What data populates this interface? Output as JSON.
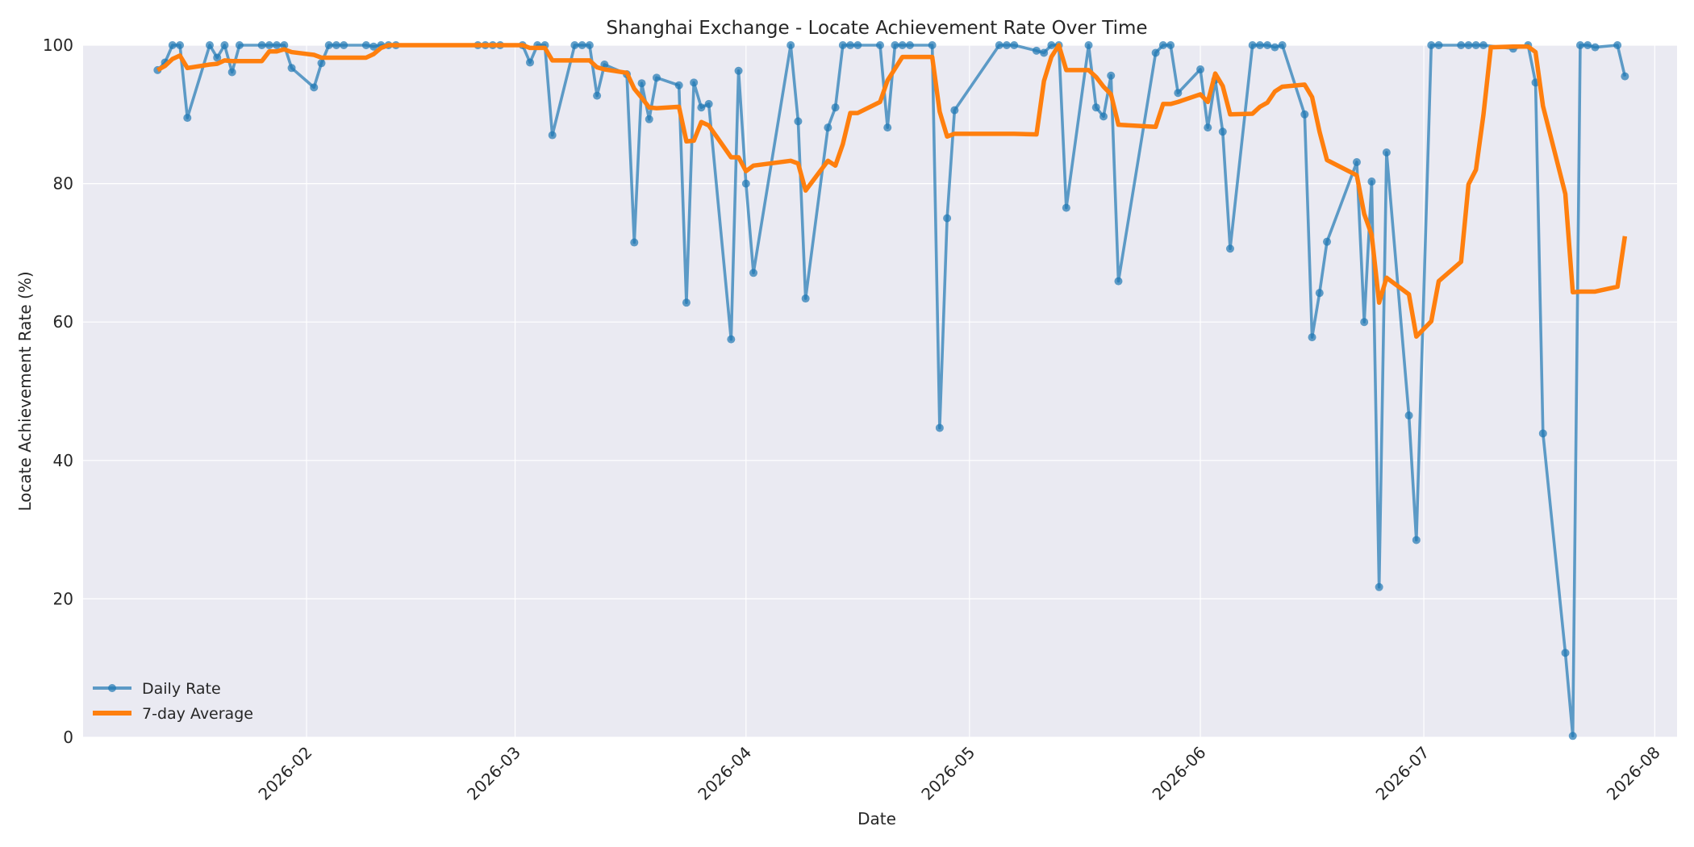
{
  "chart_data": {
    "type": "line",
    "title": "Shanghai Exchange - Locate Achievement Rate Over Time",
    "xlabel": "Date",
    "ylabel": "Locate Achievement Rate (%)",
    "xlim": [
      "2026-01-02",
      "2026-08-04"
    ],
    "ylim": [
      0,
      100
    ],
    "x_ticks": [
      "2026-02",
      "2026-03",
      "2026-04",
      "2026-05",
      "2026-06",
      "2026-07",
      "2026-08"
    ],
    "y_ticks": [
      0,
      20,
      40,
      60,
      80,
      100
    ],
    "grid": true,
    "legend_position": "lower-left",
    "series": [
      {
        "name": "Daily Rate",
        "color": "#1f77b4",
        "points": [
          [
            "2026-01-12",
            96.4
          ],
          [
            "2026-01-13",
            97.5
          ],
          [
            "2026-01-14",
            100
          ],
          [
            "2026-01-15",
            100
          ],
          [
            "2026-01-16",
            89.5
          ],
          [
            "2026-01-19",
            100
          ],
          [
            "2026-01-20",
            98.2
          ],
          [
            "2026-01-21",
            100
          ],
          [
            "2026-01-22",
            96.1
          ],
          [
            "2026-01-23",
            100
          ],
          [
            "2026-01-26",
            100
          ],
          [
            "2026-01-27",
            100
          ],
          [
            "2026-01-28",
            100
          ],
          [
            "2026-01-29",
            100
          ],
          [
            "2026-01-30",
            96.7
          ],
          [
            "2026-02-02",
            93.9
          ],
          [
            "2026-02-03",
            97.4
          ],
          [
            "2026-02-04",
            100
          ],
          [
            "2026-02-05",
            100
          ],
          [
            "2026-02-06",
            100
          ],
          [
            "2026-02-09",
            100
          ],
          [
            "2026-02-10",
            99.8
          ],
          [
            "2026-02-11",
            100
          ],
          [
            "2026-02-12",
            100
          ],
          [
            "2026-02-13",
            100
          ],
          [
            "2026-02-24",
            100
          ],
          [
            "2026-02-25",
            100
          ],
          [
            "2026-02-26",
            100
          ],
          [
            "2026-02-27",
            100
          ],
          [
            "2026-03-02",
            100
          ],
          [
            "2026-03-03",
            97.5
          ],
          [
            "2026-03-04",
            100
          ],
          [
            "2026-03-05",
            100
          ],
          [
            "2026-03-06",
            87.0
          ],
          [
            "2026-03-09",
            100
          ],
          [
            "2026-03-10",
            100
          ],
          [
            "2026-03-11",
            100
          ],
          [
            "2026-03-12",
            92.7
          ],
          [
            "2026-03-13",
            97.2
          ],
          [
            "2026-03-16",
            95.8
          ],
          [
            "2026-03-17",
            71.5
          ],
          [
            "2026-03-18",
            94.5
          ],
          [
            "2026-03-19",
            89.3
          ],
          [
            "2026-03-20",
            95.3
          ],
          [
            "2026-03-23",
            94.2
          ],
          [
            "2026-03-24",
            62.8
          ],
          [
            "2026-03-25",
            94.6
          ],
          [
            "2026-03-26",
            91.0
          ],
          [
            "2026-03-27",
            91.5
          ],
          [
            "2026-03-30",
            57.5
          ],
          [
            "2026-03-31",
            96.3
          ],
          [
            "2026-04-01",
            80.0
          ],
          [
            "2026-04-02",
            67.1
          ],
          [
            "2026-04-07",
            100
          ],
          [
            "2026-04-08",
            89.0
          ],
          [
            "2026-04-09",
            63.4
          ],
          [
            "2026-04-12",
            88.1
          ],
          [
            "2026-04-13",
            91.0
          ],
          [
            "2026-04-14",
            100
          ],
          [
            "2026-04-15",
            100
          ],
          [
            "2026-04-16",
            100
          ],
          [
            "2026-04-19",
            100
          ],
          [
            "2026-04-20",
            88.1
          ],
          [
            "2026-04-21",
            100
          ],
          [
            "2026-04-22",
            100
          ],
          [
            "2026-04-23",
            100
          ],
          [
            "2026-04-26",
            100
          ],
          [
            "2026-04-27",
            44.7
          ],
          [
            "2026-04-28",
            75.0
          ],
          [
            "2026-04-29",
            90.6
          ],
          [
            "2026-05-05",
            100
          ],
          [
            "2026-05-06",
            100
          ],
          [
            "2026-05-07",
            100
          ],
          [
            "2026-05-10",
            99.2
          ],
          [
            "2026-05-11",
            98.9
          ],
          [
            "2026-05-12",
            100
          ],
          [
            "2026-05-13",
            100
          ],
          [
            "2026-05-14",
            76.5
          ],
          [
            "2026-05-17",
            100
          ],
          [
            "2026-05-18",
            91.0
          ],
          [
            "2026-05-19",
            89.7
          ],
          [
            "2026-05-20",
            95.6
          ],
          [
            "2026-05-21",
            65.9
          ],
          [
            "2026-05-26",
            98.9
          ],
          [
            "2026-05-27",
            100
          ],
          [
            "2026-05-28",
            100
          ],
          [
            "2026-05-29",
            93.1
          ],
          [
            "2026-06-01",
            96.5
          ],
          [
            "2026-06-02",
            88.1
          ],
          [
            "2026-06-03",
            95.0
          ],
          [
            "2026-06-04",
            87.5
          ],
          [
            "2026-06-05",
            70.6
          ],
          [
            "2026-06-08",
            100
          ],
          [
            "2026-06-09",
            100
          ],
          [
            "2026-06-10",
            100
          ],
          [
            "2026-06-11",
            99.7
          ],
          [
            "2026-06-12",
            100
          ],
          [
            "2026-06-15",
            90.0
          ],
          [
            "2026-06-16",
            57.8
          ],
          [
            "2026-06-17",
            64.2
          ],
          [
            "2026-06-18",
            71.6
          ],
          [
            "2026-06-22",
            83.1
          ],
          [
            "2026-06-23",
            60.0
          ],
          [
            "2026-06-24",
            80.3
          ],
          [
            "2026-06-25",
            21.7
          ],
          [
            "2026-06-26",
            84.5
          ],
          [
            "2026-06-29",
            46.5
          ],
          [
            "2026-06-30",
            28.5
          ],
          [
            "2026-07-02",
            100
          ],
          [
            "2026-07-03",
            100
          ],
          [
            "2026-07-06",
            100
          ],
          [
            "2026-07-07",
            100
          ],
          [
            "2026-07-08",
            100
          ],
          [
            "2026-07-09",
            100
          ],
          [
            "2026-07-13",
            99.5
          ],
          [
            "2026-07-15",
            100
          ],
          [
            "2026-07-16",
            94.6
          ],
          [
            "2026-07-17",
            43.9
          ],
          [
            "2026-07-20",
            12.2
          ],
          [
            "2026-07-21",
            0.2
          ],
          [
            "2026-07-22",
            100
          ],
          [
            "2026-07-23",
            100
          ],
          [
            "2026-07-24",
            99.7
          ],
          [
            "2026-07-27",
            100
          ],
          [
            "2026-07-28",
            95.5
          ]
        ]
      },
      {
        "name": "7-day Average",
        "color": "#ff7f0e",
        "points": [
          [
            "2026-01-12",
            96.4
          ],
          [
            "2026-01-13",
            97.0
          ],
          [
            "2026-01-14",
            98.0
          ],
          [
            "2026-01-15",
            98.5
          ],
          [
            "2026-01-16",
            96.7
          ],
          [
            "2026-01-19",
            97.2
          ],
          [
            "2026-01-20",
            97.3
          ],
          [
            "2026-01-21",
            97.8
          ],
          [
            "2026-01-22",
            97.7
          ],
          [
            "2026-01-23",
            97.7
          ],
          [
            "2026-01-26",
            97.7
          ],
          [
            "2026-01-27",
            99.1
          ],
          [
            "2026-01-28",
            99.1
          ],
          [
            "2026-01-29",
            99.4
          ],
          [
            "2026-01-30",
            99.0
          ],
          [
            "2026-02-02",
            98.6
          ],
          [
            "2026-02-03",
            98.2
          ],
          [
            "2026-02-04",
            98.2
          ],
          [
            "2026-02-05",
            98.2
          ],
          [
            "2026-02-06",
            98.2
          ],
          [
            "2026-02-09",
            98.2
          ],
          [
            "2026-02-10",
            98.7
          ],
          [
            "2026-02-11",
            99.6
          ],
          [
            "2026-02-12",
            100
          ],
          [
            "2026-02-13",
            100
          ],
          [
            "2026-02-24",
            100
          ],
          [
            "2026-02-25",
            100
          ],
          [
            "2026-02-26",
            100
          ],
          [
            "2026-02-27",
            100
          ],
          [
            "2026-03-02",
            100
          ],
          [
            "2026-03-03",
            99.6
          ],
          [
            "2026-03-04",
            99.6
          ],
          [
            "2026-03-05",
            99.6
          ],
          [
            "2026-03-06",
            97.8
          ],
          [
            "2026-03-09",
            97.8
          ],
          [
            "2026-03-10",
            97.8
          ],
          [
            "2026-03-11",
            97.8
          ],
          [
            "2026-03-12",
            96.8
          ],
          [
            "2026-03-13",
            96.5
          ],
          [
            "2026-03-16",
            96.0
          ],
          [
            "2026-03-17",
            93.7
          ],
          [
            "2026-03-18",
            92.4
          ],
          [
            "2026-03-19",
            91.0
          ],
          [
            "2026-03-20",
            90.9
          ],
          [
            "2026-03-23",
            91.1
          ],
          [
            "2026-03-24",
            86.1
          ],
          [
            "2026-03-25",
            86.2
          ],
          [
            "2026-03-26",
            88.9
          ],
          [
            "2026-03-27",
            88.4
          ],
          [
            "2026-03-30",
            83.8
          ],
          [
            "2026-03-31",
            83.8
          ],
          [
            "2026-04-01",
            81.8
          ],
          [
            "2026-04-02",
            82.6
          ],
          [
            "2026-04-07",
            83.3
          ],
          [
            "2026-04-08",
            82.9
          ],
          [
            "2026-04-09",
            79.0
          ],
          [
            "2026-04-12",
            83.3
          ],
          [
            "2026-04-13",
            82.6
          ],
          [
            "2026-04-14",
            85.7
          ],
          [
            "2026-04-15",
            90.2
          ],
          [
            "2026-04-16",
            90.2
          ],
          [
            "2026-04-19",
            91.8
          ],
          [
            "2026-04-20",
            94.9
          ],
          [
            "2026-04-21",
            96.6
          ],
          [
            "2026-04-22",
            98.3
          ],
          [
            "2026-04-23",
            98.3
          ],
          [
            "2026-04-26",
            98.3
          ],
          [
            "2026-04-27",
            90.4
          ],
          [
            "2026-04-28",
            86.8
          ],
          [
            "2026-04-29",
            87.2
          ],
          [
            "2026-05-05",
            87.2
          ],
          [
            "2026-05-06",
            87.2
          ],
          [
            "2026-05-07",
            87.2
          ],
          [
            "2026-05-10",
            87.1
          ],
          [
            "2026-05-11",
            94.8
          ],
          [
            "2026-05-12",
            98.3
          ],
          [
            "2026-05-13",
            100
          ],
          [
            "2026-05-14",
            96.4
          ],
          [
            "2026-05-17",
            96.4
          ],
          [
            "2026-05-18",
            95.4
          ],
          [
            "2026-05-19",
            94.0
          ],
          [
            "2026-05-20",
            92.9
          ],
          [
            "2026-05-21",
            88.5
          ],
          [
            "2026-05-26",
            88.2
          ],
          [
            "2026-05-27",
            91.5
          ],
          [
            "2026-05-28",
            91.5
          ],
          [
            "2026-05-29",
            91.8
          ],
          [
            "2026-06-01",
            92.9
          ],
          [
            "2026-06-02",
            91.8
          ],
          [
            "2026-06-03",
            95.9
          ],
          [
            "2026-06-04",
            94.1
          ],
          [
            "2026-06-05",
            90.0
          ],
          [
            "2026-06-08",
            90.1
          ],
          [
            "2026-06-09",
            91.1
          ],
          [
            "2026-06-10",
            91.7
          ],
          [
            "2026-06-11",
            93.3
          ],
          [
            "2026-06-12",
            94.0
          ],
          [
            "2026-06-15",
            94.3
          ],
          [
            "2026-06-16",
            92.5
          ],
          [
            "2026-06-17",
            87.5
          ],
          [
            "2026-06-18",
            83.4
          ],
          [
            "2026-06-22",
            81.2
          ],
          [
            "2026-06-23",
            75.6
          ],
          [
            "2026-06-24",
            72.6
          ],
          [
            "2026-06-25",
            62.8
          ],
          [
            "2026-06-26",
            66.4
          ],
          [
            "2026-06-29",
            64.0
          ],
          [
            "2026-06-30",
            57.9
          ],
          [
            "2026-07-02",
            60.1
          ],
          [
            "2026-07-03",
            65.9
          ],
          [
            "2026-07-06",
            68.7
          ],
          [
            "2026-07-07",
            79.9
          ],
          [
            "2026-07-08",
            82.0
          ],
          [
            "2026-07-09",
            89.9
          ],
          [
            "2026-07-10",
            99.7
          ],
          [
            "2026-07-13",
            99.8
          ],
          [
            "2026-07-15",
            99.8
          ],
          [
            "2026-07-16",
            99.0
          ],
          [
            "2026-07-17",
            91.2
          ],
          [
            "2026-07-20",
            78.5
          ],
          [
            "2026-07-21",
            64.3
          ],
          [
            "2026-07-22",
            64.4
          ],
          [
            "2026-07-23",
            64.4
          ],
          [
            "2026-07-24",
            64.4
          ],
          [
            "2026-07-27",
            65.1
          ],
          [
            "2026-07-28",
            72.4
          ]
        ]
      }
    ]
  }
}
